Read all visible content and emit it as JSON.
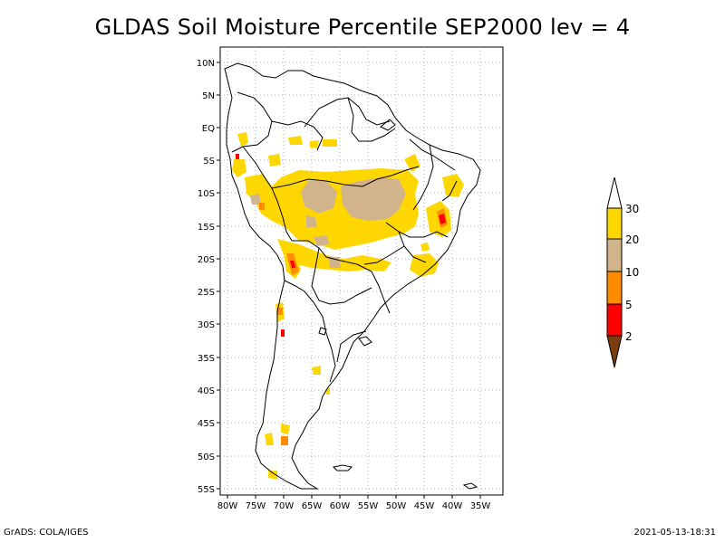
{
  "title": "GLDAS Soil Moisture Percentile SEP2000 lev = 4",
  "footer": {
    "left": "GrADS: COLA/IGES",
    "right": "2021-05-13-18:31"
  },
  "map": {
    "lat_labels": [
      "10N",
      "5N",
      "EQ",
      "5S",
      "10S",
      "15S",
      "20S",
      "25S",
      "30S",
      "35S",
      "40S",
      "45S",
      "50S",
      "55S"
    ],
    "lon_labels": [
      "80W",
      "75W",
      "70W",
      "65W",
      "60W",
      "55W",
      "50W",
      "45W",
      "40W",
      "35W"
    ]
  },
  "legend": {
    "labels": [
      "30",
      "20",
      "10",
      "5",
      "2"
    ],
    "colors": {
      "lt2": "#7a3d10",
      "2to5": "#ff0000",
      "5to10": "#ff8c00",
      "10to20": "#d2b48c",
      "20to30": "#ffd700",
      "gt30": "#ffffff"
    }
  },
  "colors": {
    "grid": "#b0b0b0",
    "land_outline": "#000000"
  }
}
